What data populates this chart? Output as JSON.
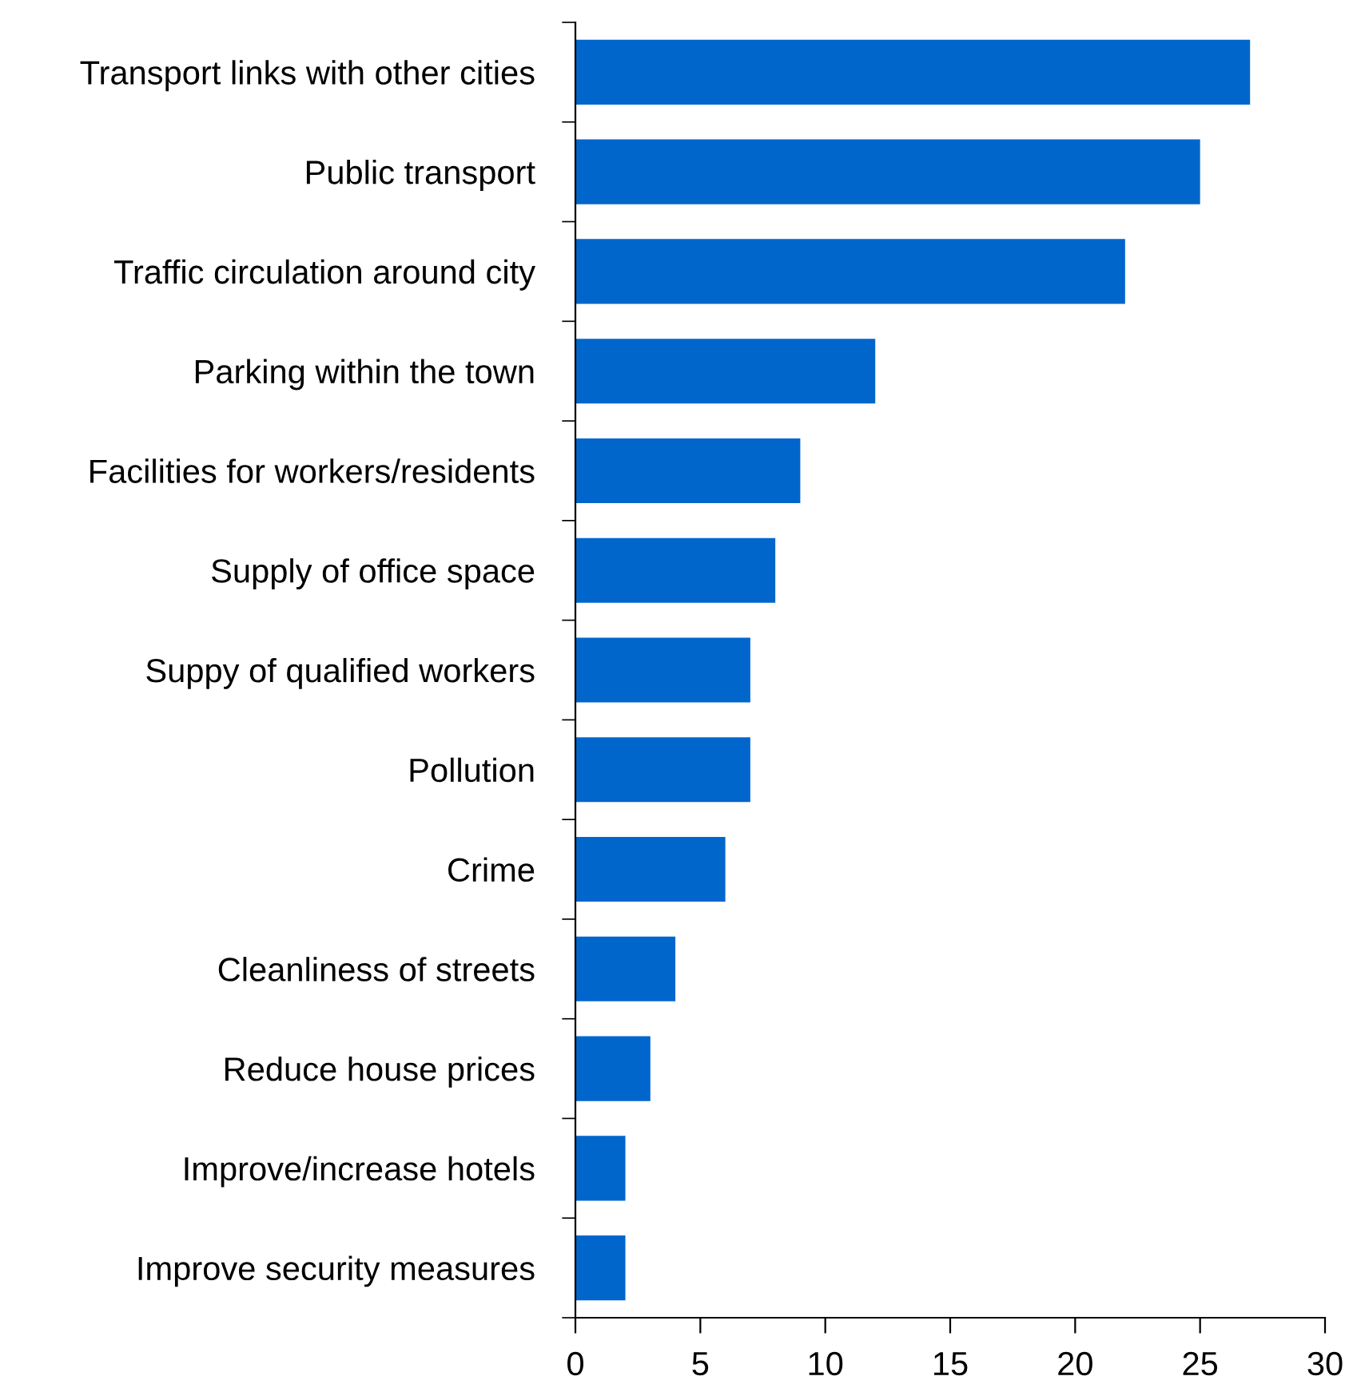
{
  "chart_data": {
    "type": "bar",
    "orientation": "horizontal",
    "categories": [
      "Transport links with other cities",
      "Public transport",
      "Traffic circulation around city",
      "Parking within the town",
      "Facilities for workers/residents",
      "Supply of office space",
      "Suppy of qualified workers",
      "Pollution",
      "Crime",
      "Cleanliness of streets",
      "Reduce house prices",
      "Improve/increase hotels",
      "Improve security measures"
    ],
    "values": [
      27,
      25,
      22,
      12,
      9,
      8,
      7,
      7,
      6,
      4,
      3,
      2,
      2
    ],
    "color": "#0066cc",
    "xlim": [
      0,
      30
    ],
    "xticks": [
      0,
      5,
      10,
      15,
      20,
      25,
      30
    ],
    "grid": false,
    "legend": false
  }
}
